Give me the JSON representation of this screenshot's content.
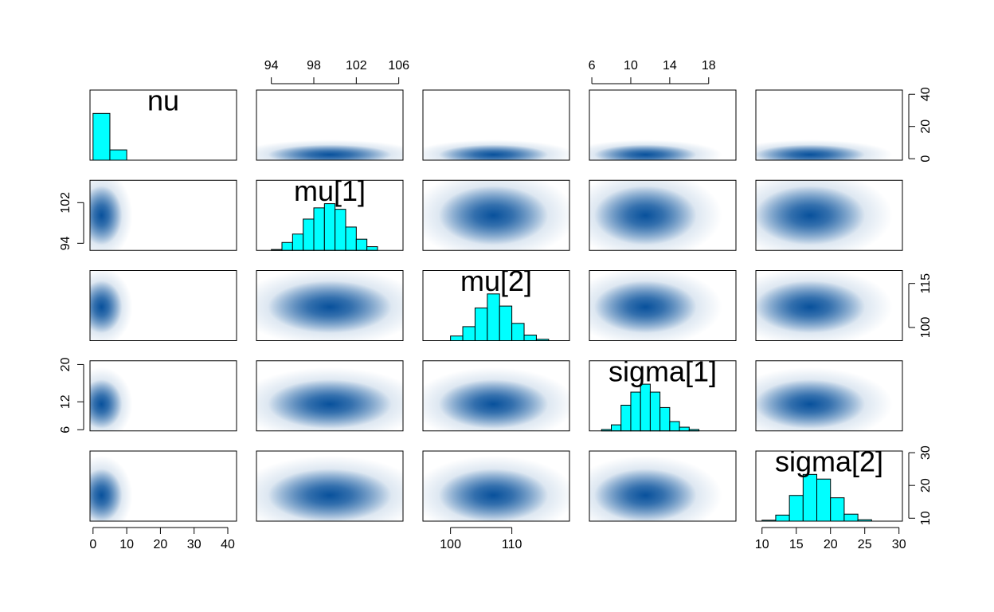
{
  "chart_data": {
    "type": "pairs",
    "hist_color": "#00ffff",
    "density_color": "#08519c",
    "variables": [
      {
        "name": "nu",
        "lim": [
          -0.9,
          42.6
        ],
        "axes": [
          {
            "side": "bottom",
            "ticks": [
              0,
              10,
              20,
              30,
              40
            ]
          },
          {
            "side": "right",
            "ticks": [
              0,
              20,
              40
            ]
          }
        ],
        "hist": {
          "bins": [
            0,
            5,
            10
          ],
          "heights": [
            1,
            0.22
          ]
        }
      },
      {
        "name": "mu[1]",
        "lim": [
          92.6,
          106.4
        ],
        "axes": [
          {
            "side": "top",
            "ticks": [
              94,
              98,
              102,
              106
            ]
          },
          {
            "side": "left",
            "ticks": [
              94,
              102
            ]
          }
        ],
        "hist": {
          "bins": [
            94,
            95,
            96,
            97,
            98,
            99,
            100,
            101,
            102,
            103,
            104
          ],
          "heights": [
            0.02,
            0.17,
            0.35,
            0.67,
            0.91,
            1,
            0.88,
            0.5,
            0.24,
            0.08
          ]
        }
      },
      {
        "name": "mu[2]",
        "lim": [
          95.5,
          119.4
        ],
        "axes": [
          {
            "side": "bottom",
            "ticks": [
              100,
              110
            ]
          },
          {
            "side": "right",
            "ticks": [
              100,
              115
            ]
          }
        ],
        "hist": {
          "bins": [
            100,
            102,
            104,
            106,
            108,
            110,
            112,
            114,
            116
          ],
          "heights": [
            0.1,
            0.3,
            0.7,
            1,
            0.74,
            0.37,
            0.12,
            0.03
          ]
        }
      },
      {
        "name": "sigma[1]",
        "lim": [
          5.75,
          20.8
        ],
        "axes": [
          {
            "side": "top",
            "ticks": [
              6,
              10,
              14,
              18
            ]
          },
          {
            "side": "left",
            "ticks": [
              6,
              12,
              20
            ]
          }
        ],
        "hist": {
          "bins": [
            7,
            8,
            9,
            10,
            11,
            12,
            13,
            14,
            15,
            16,
            17
          ],
          "heights": [
            0.03,
            0.13,
            0.55,
            0.83,
            1,
            0.83,
            0.5,
            0.2,
            0.08,
            0.03
          ]
        }
      },
      {
        "name": "sigma[2]",
        "lim": [
          9.1,
          30.5
        ],
        "axes": [
          {
            "side": "bottom",
            "ticks": [
              10,
              15,
              20,
              25,
              30
            ]
          },
          {
            "side": "right",
            "ticks": [
              10,
              20,
              30
            ]
          }
        ],
        "hist": {
          "bins": [
            10,
            12,
            14,
            16,
            18,
            20,
            22,
            24,
            26
          ],
          "heights": [
            0.02,
            0.13,
            0.55,
            1,
            0.9,
            0.5,
            0.15,
            0.03
          ]
        }
      }
    ]
  }
}
